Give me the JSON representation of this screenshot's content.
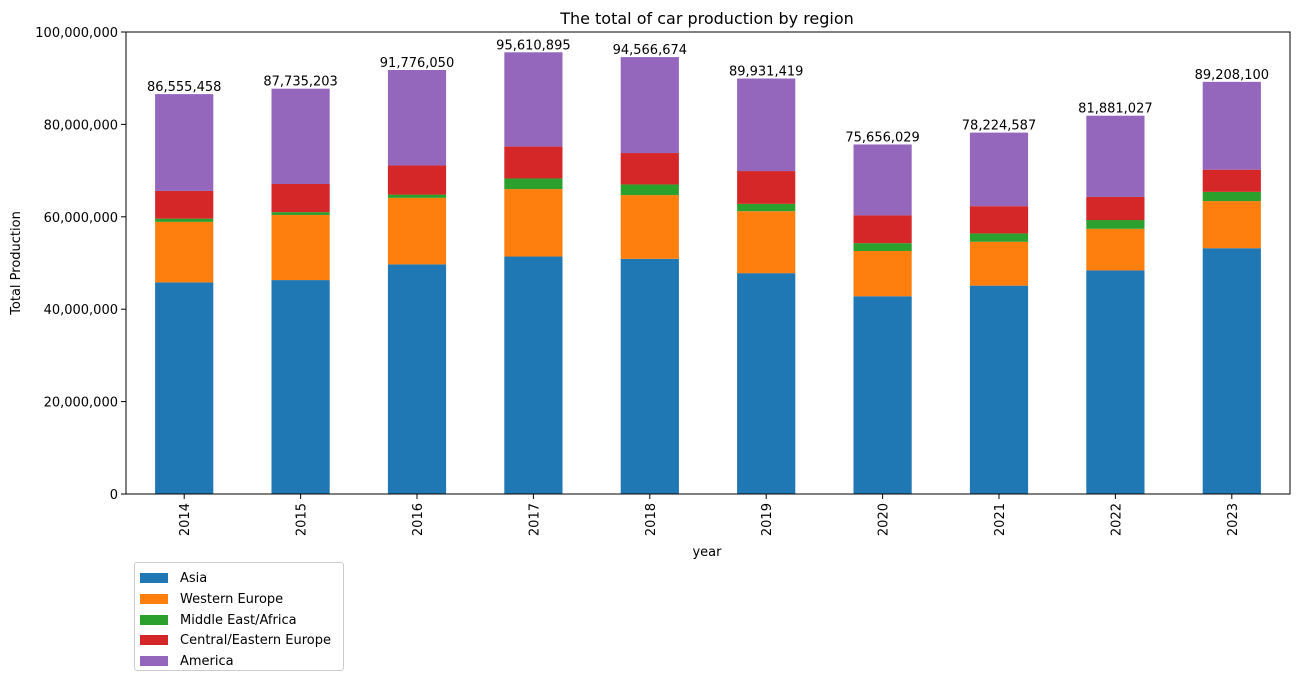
{
  "chart_data": {
    "type": "bar",
    "stacked": true,
    "title": "The total of car production by region",
    "xlabel": "year",
    "ylabel": "Total Production",
    "ylim": [
      0,
      100000000
    ],
    "yticks": [
      0,
      20000000,
      40000000,
      60000000,
      80000000,
      100000000
    ],
    "ytick_labels": [
      "0",
      "20,000,000",
      "40,000,000",
      "60,000,000",
      "80,000,000",
      "100,000,000"
    ],
    "categories": [
      "2014",
      "2015",
      "2016",
      "2017",
      "2018",
      "2019",
      "2020",
      "2021",
      "2022",
      "2023"
    ],
    "series": [
      {
        "name": "Asia",
        "color": "#1f77b4",
        "values": [
          45800000,
          46300000,
          49700000,
          51400000,
          50900000,
          47800000,
          42800000,
          45100000,
          48400000,
          53200000
        ]
      },
      {
        "name": "Western Europe",
        "color": "#ff7f0e",
        "values": [
          13100000,
          14100000,
          14400000,
          14600000,
          13800000,
          13400000,
          9800000,
          9500000,
          9000000,
          10200000
        ]
      },
      {
        "name": "Middle East/Africa",
        "color": "#2ca02c",
        "values": [
          700000,
          600000,
          700000,
          2300000,
          2300000,
          1600000,
          1700000,
          1800000,
          1900000,
          2000000
        ]
      },
      {
        "name": "Central/Eastern Europe",
        "color": "#d62728",
        "values": [
          6000000,
          6100000,
          6300000,
          6900000,
          6800000,
          7100000,
          6000000,
          5900000,
          5000000,
          4800000
        ]
      },
      {
        "name": "America",
        "color": "#9467bd",
        "values": [
          20955458,
          20635203,
          20676050,
          20410895,
          20766674,
          20031419,
          15356029,
          15924587,
          17581027,
          19008100
        ]
      }
    ],
    "totals": [
      86555458,
      87735203,
      91776050,
      95610895,
      94566674,
      89931419,
      75656029,
      78224587,
      81881027,
      89208100
    ],
    "total_labels": [
      "86,555,458",
      "87,735,203",
      "91,776,050",
      "95,610,895",
      "94,566,674",
      "89,931,419",
      "75,656,029",
      "78,224,587",
      "81,881,027",
      "89,208,100"
    ],
    "legend_position": "below-left",
    "grid": false
  }
}
